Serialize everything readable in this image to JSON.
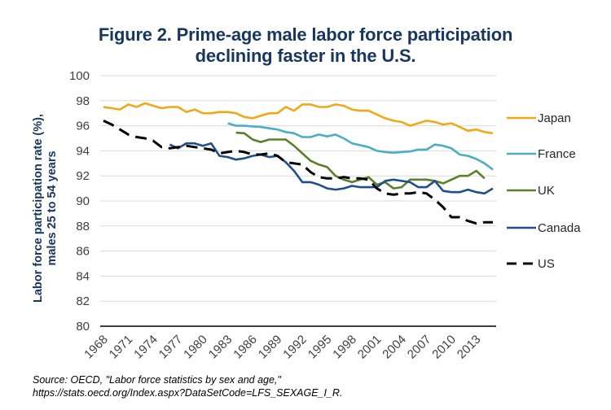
{
  "chart_data": {
    "type": "line",
    "title": "Figure 2. Prime-age male labor force participation declining faster in the U.S.",
    "title_lines": [
      "Figure 2. Prime-age male labor force participation",
      "declining faster in the U.S."
    ],
    "xlabel": "",
    "ylabel": "Labor force participation rate (%), males 25 to 54 years",
    "ylabel_lines": [
      "Labor force participation rate (%),",
      "males 25 to 54 years"
    ],
    "ylim": [
      80,
      100
    ],
    "yticks": [
      "80",
      "82",
      "84",
      "86",
      "88",
      "90",
      "92",
      "94",
      "96",
      "98",
      "100"
    ],
    "xlim": [
      1968,
      2015
    ],
    "xticks": [
      "1968",
      "1971",
      "1974",
      "1977",
      "1980",
      "1983",
      "1986",
      "1989",
      "1992",
      "1995",
      "1998",
      "2001",
      "2004",
      "2007",
      "2010",
      "2013"
    ],
    "grid": "horizontal",
    "legend": "right",
    "series": [
      {
        "name": "Japan",
        "color": "#f0a818",
        "dash": false,
        "start": 1968,
        "values": [
          97.5,
          97.4,
          97.3,
          97.7,
          97.5,
          97.8,
          97.6,
          97.4,
          97.5,
          97.5,
          97.1,
          97.3,
          97.0,
          97.0,
          97.1,
          97.1,
          97.0,
          96.7,
          96.6,
          96.8,
          97.0,
          97.0,
          97.5,
          97.2,
          97.7,
          97.7,
          97.5,
          97.5,
          97.7,
          97.6,
          97.3,
          97.2,
          97.2,
          96.9,
          96.6,
          96.4,
          96.3,
          96.0,
          96.2,
          96.4,
          96.3,
          96.1,
          96.2,
          95.9,
          95.6,
          95.7,
          95.5,
          95.4
        ]
      },
      {
        "name": "France",
        "color": "#4bacc6",
        "dash": false,
        "start": 1983,
        "values": [
          96.2,
          96.0,
          96.0,
          95.95,
          95.9,
          95.8,
          95.7,
          95.5,
          95.4,
          95.1,
          95.1,
          95.3,
          95.15,
          95.3,
          95.0,
          94.6,
          94.45,
          94.3,
          94.0,
          93.9,
          93.85,
          93.9,
          93.95,
          94.1,
          94.1,
          94.5,
          94.4,
          94.2,
          93.7,
          93.6,
          93.35,
          93.0,
          92.5
        ]
      },
      {
        "name": "UK",
        "color": "#5b7f2b",
        "dash": false,
        "start": 1984,
        "values": [
          95.45,
          95.4,
          94.9,
          94.7,
          94.9,
          94.9,
          94.9,
          94.4,
          93.8,
          93.2,
          92.9,
          92.7,
          92.0,
          91.7,
          91.5,
          91.7,
          91.9,
          91.3,
          91.5,
          91.0,
          91.1,
          91.7,
          91.7,
          91.7,
          91.6,
          91.4,
          91.7,
          92.0,
          92.0,
          92.4,
          91.8
        ]
      },
      {
        "name": "Canada",
        "color": "#1f4e8c",
        "dash": false,
        "start": 1976,
        "values": [
          94.5,
          94.2,
          94.6,
          94.6,
          94.4,
          94.6,
          93.6,
          93.5,
          93.3,
          93.4,
          93.6,
          93.7,
          93.5,
          93.6,
          93.1,
          92.4,
          91.5,
          91.5,
          91.3,
          91.0,
          90.9,
          91.0,
          91.2,
          91.1,
          91.1,
          91.1,
          91.6,
          91.7,
          91.6,
          91.5,
          91.1,
          91.1,
          91.6,
          90.8,
          90.7,
          90.7,
          90.9,
          90.7,
          90.6,
          91.0
        ]
      },
      {
        "name": "US",
        "color": "#000000",
        "dash": true,
        "start": 1968,
        "values": [
          96.4,
          96.1,
          95.7,
          95.3,
          95.1,
          95.0,
          94.8,
          94.3,
          94.2,
          94.3,
          94.4,
          94.3,
          94.2,
          94.1,
          93.8,
          93.9,
          94.0,
          93.9,
          93.7,
          93.7,
          93.8,
          93.6,
          93.1,
          93.0,
          92.9,
          92.3,
          91.9,
          91.8,
          91.8,
          91.9,
          91.8,
          91.8,
          91.7,
          91.0,
          90.6,
          90.5,
          90.6,
          90.6,
          90.7,
          90.6,
          90.1,
          89.5,
          88.7,
          88.7,
          88.4,
          88.2,
          88.3,
          88.3
        ]
      }
    ]
  },
  "source": {
    "line1": "Source: OECD, \"Labor force statistics by sex and age,\"",
    "line2": "https://stats.oecd.org/Index.aspx?DataSetCode=LFS_SEXAGE_I_R."
  }
}
